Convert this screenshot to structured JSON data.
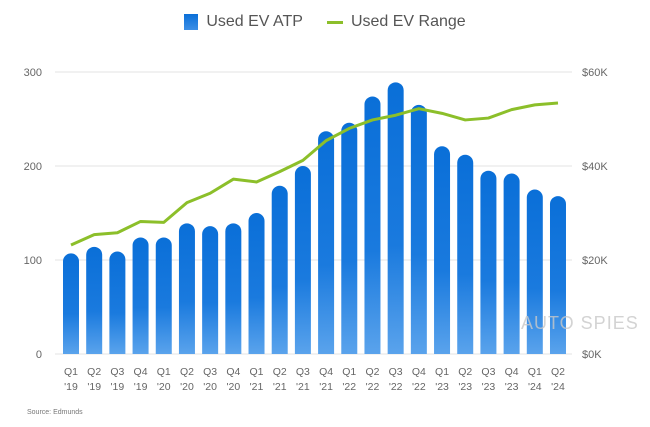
{
  "chart_data": {
    "type": "bar+line",
    "categories": [
      "Q1 '19",
      "Q2 '19",
      "Q3 '19",
      "Q4 '19",
      "Q1 '20",
      "Q2 '20",
      "Q3 '20",
      "Q4 '20",
      "Q1 '21",
      "Q2 '21",
      "Q3 '21",
      "Q4 '21",
      "Q1 '22",
      "Q2 '22",
      "Q3 '22",
      "Q4 '22",
      "Q1 '23",
      "Q2 '23",
      "Q3 '23",
      "Q4 '23",
      "Q1 '24",
      "Q2 '24"
    ],
    "category_lines": [
      [
        "Q1",
        "'19"
      ],
      [
        "Q2",
        "'19"
      ],
      [
        "Q3",
        "'19"
      ],
      [
        "Q4",
        "'19"
      ],
      [
        "Q1",
        "'20"
      ],
      [
        "Q2",
        "'20"
      ],
      [
        "Q3",
        "'20"
      ],
      [
        "Q4",
        "'20"
      ],
      [
        "Q1",
        "'21"
      ],
      [
        "Q2",
        "'21"
      ],
      [
        "Q3",
        "'21"
      ],
      [
        "Q4",
        "'21"
      ],
      [
        "Q1",
        "'22"
      ],
      [
        "Q2",
        "'22"
      ],
      [
        "Q3",
        "'22"
      ],
      [
        "Q4",
        "'22"
      ],
      [
        "Q1",
        "'23"
      ],
      [
        "Q2",
        "'23"
      ],
      [
        "Q3",
        "'23"
      ],
      [
        "Q4",
        "'23"
      ],
      [
        "Q1",
        "'24"
      ],
      [
        "Q2",
        "'24"
      ]
    ],
    "series": [
      {
        "name": "Used EV ATP",
        "type": "bar",
        "axis": "right",
        "unit": "$K",
        "color": "#0a6fd8",
        "values": [
          21.4,
          22.8,
          21.8,
          24.8,
          24.8,
          27.8,
          27.2,
          27.8,
          30.0,
          35.8,
          40.0,
          47.4,
          49.2,
          54.8,
          57.8,
          53.0,
          44.2,
          42.4,
          39.0,
          38.4,
          35.0,
          33.6
        ]
      },
      {
        "name": "Used EV Range",
        "type": "line",
        "axis": "left",
        "color": "#8cbf2a",
        "values": [
          116,
          127,
          129,
          141,
          140,
          161,
          171,
          186,
          183,
          194,
          206,
          227,
          240,
          249,
          254,
          261,
          256,
          249,
          251,
          260,
          265,
          267
        ]
      }
    ],
    "left_axis": {
      "range": [
        0,
        300
      ],
      "ticks": [
        "0",
        "100",
        "200",
        "300"
      ]
    },
    "right_axis": {
      "range": [
        0,
        60
      ],
      "ticks": [
        "$0K",
        "$20K",
        "$40K",
        "$60K"
      ]
    },
    "grid": true,
    "legend_position": "top-center",
    "source": "Source: Edmunds"
  },
  "watermark": "AUTO SPIES"
}
